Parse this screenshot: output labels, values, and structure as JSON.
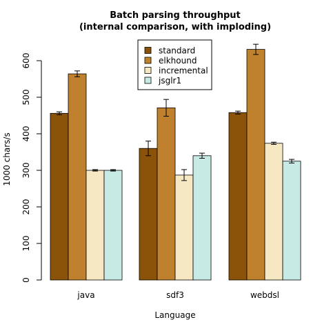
{
  "chart_data": {
    "type": "bar",
    "title": "Batch parsing throughput",
    "subtitle": "(internal comparison, with imploding)",
    "xlabel": "Language",
    "ylabel": "1000 chars/s",
    "ylim": [
      0,
      650
    ],
    "yticks": [
      0,
      100,
      200,
      300,
      400,
      500,
      600
    ],
    "grid": false,
    "legend_position": "top-center",
    "categories": [
      "java",
      "sdf3",
      "webdsl"
    ],
    "series": [
      {
        "name": "standard",
        "color": "#8b5209",
        "values": [
          456,
          360,
          458
        ],
        "errors": [
          4,
          20,
          4
        ]
      },
      {
        "name": "elkhound",
        "color": "#bf812d",
        "values": [
          564,
          471,
          631
        ],
        "errors": [
          8,
          23,
          14
        ]
      },
      {
        "name": "incremental",
        "color": "#f6e8c3",
        "values": [
          300,
          287,
          374
        ],
        "errors": [
          2,
          15,
          3
        ]
      },
      {
        "name": "jsglr1",
        "color": "#c7eae5",
        "values": [
          300,
          340,
          325
        ],
        "errors": [
          2,
          7,
          5
        ]
      }
    ]
  }
}
